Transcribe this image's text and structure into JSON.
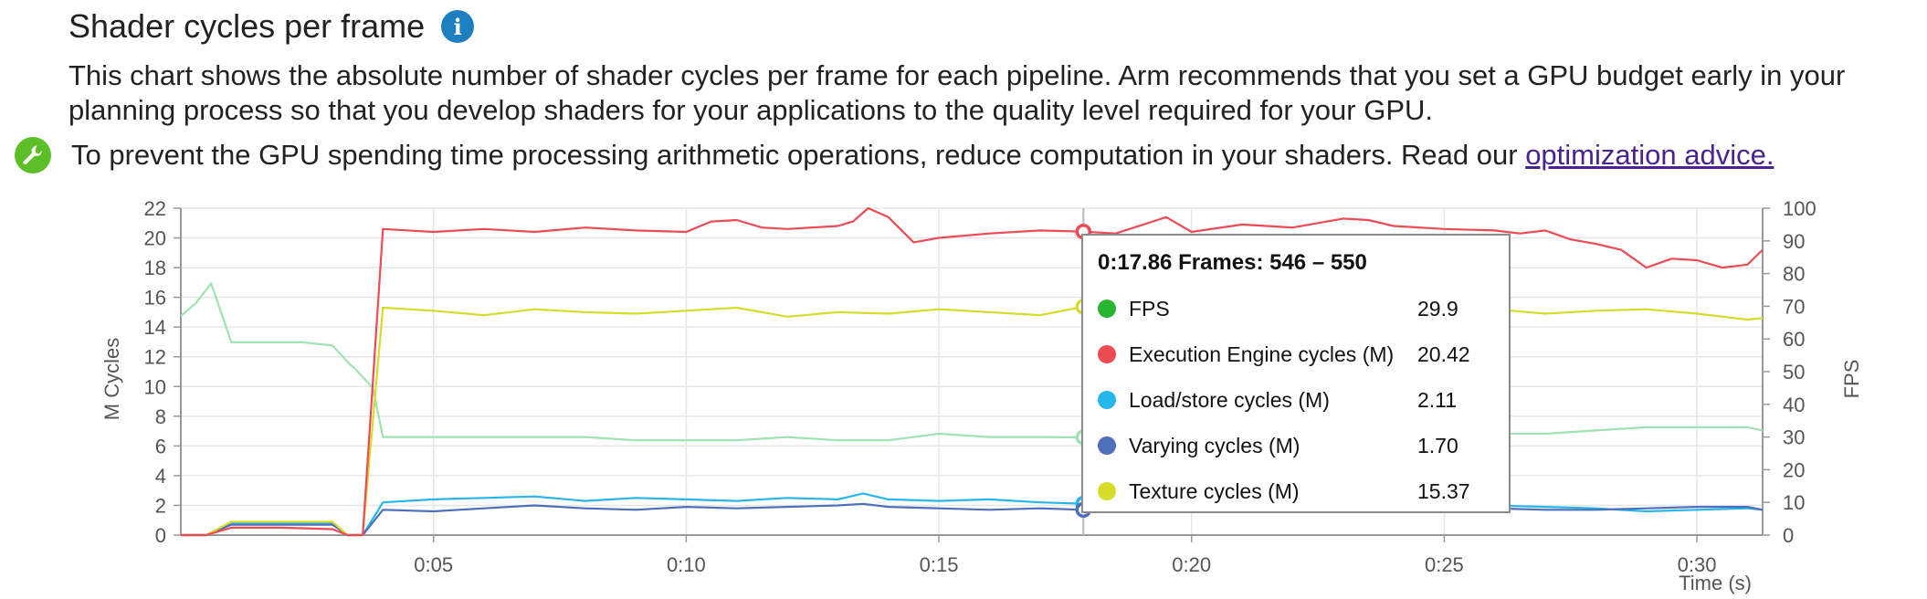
{
  "header": {
    "title": "Shader cycles per frame",
    "info_icon": "info-icon",
    "description": "This chart shows the absolute number of shader cycles per frame for each pipeline. Arm recommends that you set a GPU budget early in your planning process so that you develop shaders for your applications to the quality level required for your GPU."
  },
  "advice": {
    "icon": "wrench-icon",
    "text": "To prevent the GPU spending time processing arithmetic operations, reduce computation in your shaders. Read our ",
    "link_text": "optimization advice."
  },
  "colors": {
    "fps": "#28b531",
    "execution": "#ec4b55",
    "loadstore": "#27b6ea",
    "varying": "#4f6fbd",
    "texture": "#d7dc2b",
    "fps_line": "#9ee3b1",
    "grid": "#e6e6e6",
    "axis": "#999999",
    "text": "#555555"
  },
  "chart_data": {
    "type": "line",
    "xlabel": "Time (s)",
    "ylabel": "M Cycles",
    "y2label": "FPS",
    "xlim": [
      0,
      31.3
    ],
    "ylim": [
      0,
      22
    ],
    "y2lim": [
      0,
      100
    ],
    "xticks": [
      5,
      10,
      15,
      20,
      25,
      30
    ],
    "xtick_labels": [
      "0:05",
      "0:10",
      "0:15",
      "0:20",
      "0:25",
      "0:30"
    ],
    "yticks": [
      0,
      2,
      4,
      6,
      8,
      10,
      12,
      14,
      16,
      18,
      20,
      22
    ],
    "y2ticks": [
      0,
      10,
      20,
      30,
      40,
      50,
      60,
      70,
      80,
      90,
      100
    ],
    "grid": true,
    "cursor_x": 17.86,
    "series": [
      {
        "name": "Execution Engine cycles (M)",
        "axis": "left",
        "color": "#ec4b55",
        "x": [
          0,
          0.5,
          1,
          2,
          3,
          3.3,
          3.6,
          4,
          5,
          6,
          7,
          8,
          9,
          10,
          10.5,
          11,
          11.5,
          12,
          13,
          13.3,
          13.6,
          14,
          14.5,
          15,
          16,
          17,
          17.86,
          18.5,
          19.5,
          20,
          21,
          22,
          23,
          23.5,
          24,
          25,
          26,
          26.5,
          27,
          27.5,
          28,
          28.5,
          29,
          29.5,
          30,
          30.5,
          31,
          31.3
        ],
        "y": [
          0,
          0,
          0.5,
          0.5,
          0.4,
          0,
          0,
          20.6,
          20.4,
          20.6,
          20.4,
          20.7,
          20.5,
          20.4,
          21.1,
          21.2,
          20.7,
          20.6,
          20.8,
          21.1,
          22,
          21.4,
          19.7,
          20.0,
          20.3,
          20.5,
          20.42,
          20.3,
          21.4,
          20.4,
          20.9,
          20.7,
          21.3,
          21.2,
          20.8,
          20.6,
          20.5,
          20.3,
          20.5,
          19.9,
          19.6,
          19.2,
          18.0,
          18.6,
          18.5,
          18.0,
          18.2,
          19.2
        ]
      },
      {
        "name": "Texture cycles (M)",
        "axis": "left",
        "color": "#d7dc2b",
        "x": [
          0,
          0.5,
          1,
          2,
          3,
          3.3,
          3.6,
          4,
          5,
          6,
          7,
          8,
          9,
          10,
          11,
          12,
          13,
          14,
          15,
          16,
          17,
          17.86,
          18.5,
          19,
          20,
          21,
          22,
          23,
          24,
          25,
          26,
          27,
          28,
          29,
          30,
          31,
          31.3
        ],
        "y": [
          0,
          0,
          0.9,
          0.9,
          0.9,
          0,
          0,
          15.3,
          15.1,
          14.8,
          15.2,
          15.0,
          14.9,
          15.1,
          15.3,
          14.7,
          15.0,
          14.9,
          15.2,
          15.0,
          14.8,
          15.37,
          15.0,
          13.8,
          14.9,
          15.1,
          15.0,
          15.3,
          14.9,
          15.0,
          15.2,
          14.9,
          15.1,
          15.2,
          14.9,
          14.5,
          14.6
        ]
      },
      {
        "name": "Load/store cycles (M)",
        "axis": "left",
        "color": "#27b6ea",
        "x": [
          0,
          0.5,
          1,
          2,
          3,
          3.3,
          3.6,
          4,
          5,
          6,
          7,
          8,
          9,
          10,
          11,
          12,
          13,
          13.5,
          14,
          15,
          16,
          17,
          17.86,
          18.5,
          19,
          20,
          21,
          22,
          23,
          24,
          25,
          26,
          27,
          28,
          29,
          30,
          31,
          31.3
        ],
        "y": [
          0,
          0,
          0.8,
          0.8,
          0.8,
          0,
          0,
          2.2,
          2.4,
          2.5,
          2.6,
          2.3,
          2.5,
          2.4,
          2.3,
          2.5,
          2.4,
          2.8,
          2.4,
          2.3,
          2.4,
          2.2,
          2.11,
          2.2,
          2.3,
          2.2,
          2.1,
          2.3,
          2.2,
          2.0,
          2.1,
          2.0,
          1.9,
          1.8,
          1.6,
          1.7,
          1.8,
          1.7
        ]
      },
      {
        "name": "Varying cycles (M)",
        "axis": "left",
        "color": "#4f6fbd",
        "x": [
          0,
          0.5,
          1,
          2,
          3,
          3.3,
          3.6,
          4,
          5,
          6,
          7,
          8,
          9,
          10,
          11,
          12,
          13,
          13.5,
          14,
          15,
          16,
          17,
          17.86,
          18.5,
          19,
          20,
          21,
          22,
          23,
          24,
          25,
          26,
          27,
          28,
          29,
          30,
          31,
          31.3
        ],
        "y": [
          0,
          0,
          0.7,
          0.7,
          0.7,
          0,
          0,
          1.7,
          1.6,
          1.8,
          2.0,
          1.8,
          1.7,
          1.9,
          1.8,
          1.9,
          2.0,
          2.1,
          1.9,
          1.8,
          1.7,
          1.8,
          1.7,
          1.8,
          1.7,
          1.8,
          1.7,
          1.8,
          1.7,
          1.8,
          1.7,
          1.8,
          1.7,
          1.7,
          1.8,
          1.9,
          1.9,
          1.7
        ]
      },
      {
        "name": "FPS",
        "axis": "right",
        "color": "#9ee3b1",
        "x": [
          0,
          0.3,
          0.6,
          1,
          2,
          2.2,
          2.4,
          3,
          3.3,
          3.5,
          3.8,
          4,
          5,
          6,
          7,
          8,
          9,
          10,
          11,
          12,
          13,
          14,
          15,
          16,
          17,
          17.86,
          18.5,
          19,
          20,
          21,
          22,
          23,
          24,
          25,
          26,
          27,
          28,
          29,
          30,
          31,
          31.3
        ],
        "y": [
          67,
          71,
          77,
          59,
          59,
          59,
          59,
          58,
          53,
          50,
          45,
          30,
          30,
          30,
          30,
          30,
          29,
          29,
          29,
          30,
          29,
          29,
          31,
          30,
          30,
          29.9,
          30,
          29,
          30,
          30,
          30,
          30,
          30,
          30,
          31,
          31,
          32,
          33,
          33,
          33,
          32
        ]
      }
    ],
    "tooltip": {
      "header": "0:17.86 Frames: 546 – 550",
      "rows": [
        {
          "label": "FPS",
          "value": "29.9",
          "color": "#28b531"
        },
        {
          "label": "Execution Engine cycles (M)",
          "value": "20.42",
          "color": "#ec4b55"
        },
        {
          "label": "Load/store cycles (M)",
          "value": "2.11",
          "color": "#27b6ea"
        },
        {
          "label": "Varying cycles (M)",
          "value": "1.70",
          "color": "#4f6fbd"
        },
        {
          "label": "Texture cycles (M)",
          "value": "15.37",
          "color": "#d7dc2b"
        }
      ]
    }
  }
}
